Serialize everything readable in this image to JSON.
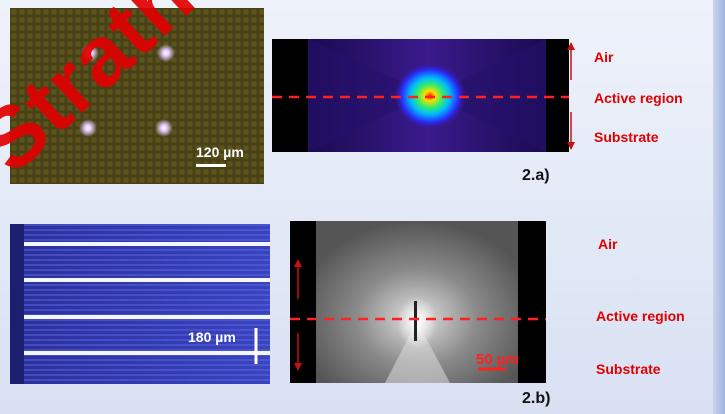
{
  "figure_a": {
    "scale_label": "120 µm",
    "label_air": "Air",
    "label_active": "Active region",
    "label_substrate": "Substrate",
    "caption": "2.a)"
  },
  "figure_b": {
    "scale_label": "180 µm",
    "scale_label_2": "50 µm",
    "label_air": "Air",
    "label_active": "Active region",
    "label_substrate": "Substrate",
    "caption": "2.b)"
  },
  "watermark": "Strathclyde Uni",
  "colors": {
    "annotation_red": "#e00000",
    "dash_red": "#ff2020",
    "background": "#e6ecf8"
  }
}
